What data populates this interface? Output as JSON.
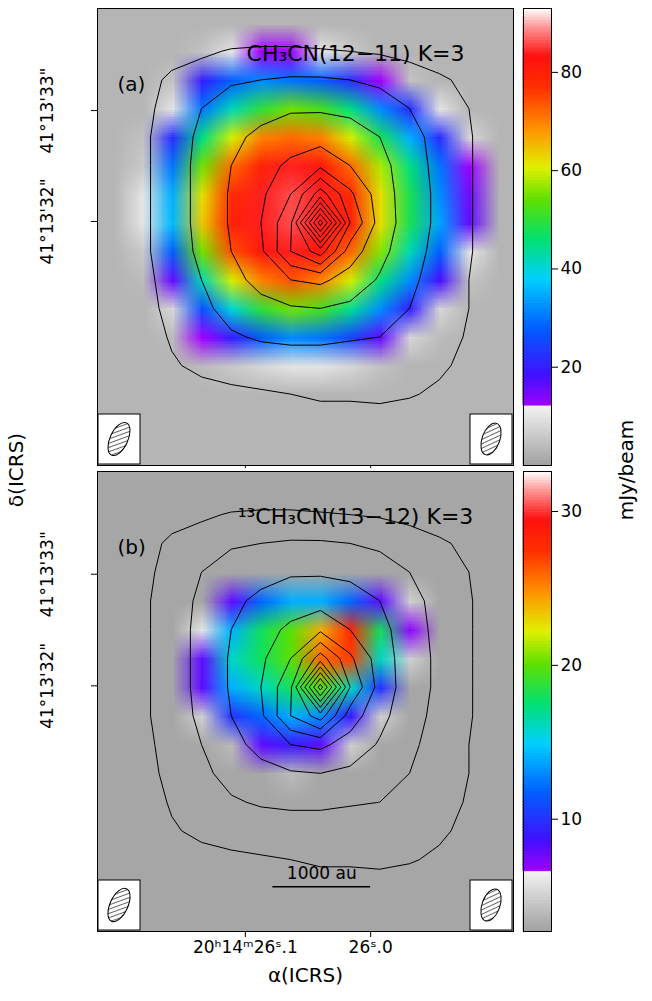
{
  "chart_data": [
    {
      "type": "heatmap",
      "label": "(a)",
      "title": "CH₃CN(12−11) K=3",
      "xlim": [
        26.218,
        25.886
      ],
      "ylim": [
        29.8,
        33.92
      ],
      "xticks": [
        {
          "value": 26.1,
          "label": "20ʰ14ᵐ26ˢ.1"
        },
        {
          "value": 26.0,
          "label": "26ˢ.0"
        }
      ],
      "yticks": [
        {
          "value": 32,
          "label": "41°13'32\""
        },
        {
          "value": 33,
          "label": "41°13'33\""
        }
      ],
      "tick_labels": "y",
      "cells": [
        [
          3,
          3,
          3,
          3,
          3,
          3,
          3,
          3,
          3,
          3,
          3,
          3,
          3,
          3
        ],
        [
          3,
          3,
          3,
          5,
          10,
          12,
          12,
          10,
          6,
          3,
          3,
          3,
          3,
          3
        ],
        [
          3,
          3,
          5,
          20,
          28,
          32,
          30,
          28,
          22,
          12,
          5,
          3,
          3,
          3
        ],
        [
          3,
          3,
          10,
          30,
          42,
          50,
          55,
          52,
          45,
          32,
          22,
          10,
          3,
          3
        ],
        [
          3,
          5,
          22,
          45,
          60,
          70,
          72,
          70,
          60,
          48,
          35,
          22,
          8,
          3
        ],
        [
          3,
          6,
          30,
          55,
          72,
          80,
          84,
          82,
          72,
          58,
          45,
          30,
          12,
          3
        ],
        [
          3,
          10,
          35,
          62,
          78,
          84,
          86,
          84,
          78,
          62,
          48,
          32,
          15,
          3
        ],
        [
          3,
          10,
          36,
          64,
          80,
          84,
          86,
          84,
          80,
          62,
          48,
          34,
          16,
          3
        ],
        [
          3,
          6,
          28,
          55,
          74,
          82,
          84,
          82,
          72,
          56,
          42,
          28,
          10,
          3
        ],
        [
          3,
          4,
          16,
          42,
          60,
          70,
          74,
          70,
          60,
          45,
          32,
          18,
          5,
          3
        ],
        [
          3,
          3,
          8,
          26,
          40,
          50,
          55,
          52,
          44,
          32,
          20,
          8,
          3,
          3
        ],
        [
          3,
          3,
          4,
          12,
          20,
          28,
          32,
          30,
          25,
          16,
          8,
          4,
          3,
          3
        ],
        [
          3,
          3,
          3,
          4,
          6,
          8,
          10,
          10,
          8,
          5,
          3,
          3,
          3,
          3
        ],
        [
          3,
          3,
          3,
          3,
          3,
          3,
          3,
          3,
          3,
          3,
          3,
          3,
          3,
          3
        ],
        [
          3,
          3,
          3,
          3,
          3,
          3,
          3,
          3,
          3,
          3,
          3,
          3,
          3,
          3
        ],
        [
          3,
          3,
          3,
          3,
          3,
          3,
          3,
          3,
          3,
          3,
          3,
          3,
          3,
          3
        ]
      ],
      "colorbar": {
        "range": [
          0,
          93
        ],
        "ticks": [
          20,
          40,
          60,
          80
        ],
        "threshold": 12
      },
      "beams": [
        {
          "major": 0.32,
          "minor": 0.16,
          "pa": -25
        },
        {
          "major": 0.3,
          "minor": 0.16,
          "pa": -20
        }
      ]
    },
    {
      "type": "heatmap",
      "label": "(b)",
      "title": "¹³CH₃CN(13−12) K=3",
      "x_label": "α(ICRS)",
      "xlim": [
        26.218,
        25.886
      ],
      "ylim": [
        29.8,
        33.92
      ],
      "xticks": [
        {
          "value": 26.1,
          "label": "20ʰ14ᵐ26ˢ.1"
        },
        {
          "value": 26.0,
          "label": "26ˢ.0"
        }
      ],
      "yticks": [
        {
          "value": 32,
          "label": "41°13'32\""
        },
        {
          "value": 33,
          "label": "41°13'33\""
        }
      ],
      "cells": [
        [
          3,
          3,
          3,
          3,
          3,
          3,
          3,
          3,
          3,
          3,
          3,
          3,
          3,
          3
        ],
        [
          3,
          3,
          3,
          3,
          3,
          3,
          3,
          3,
          3,
          3,
          3,
          3,
          3,
          3
        ],
        [
          3,
          3,
          3,
          3,
          3,
          3,
          3,
          3,
          3,
          3,
          3,
          3,
          3,
          3
        ],
        [
          3,
          3,
          3,
          3,
          3,
          3,
          3,
          3,
          3,
          3,
          3,
          3,
          3,
          3
        ],
        [
          3,
          3,
          3,
          3,
          8,
          12,
          14,
          14,
          12,
          8,
          5,
          3,
          3,
          3
        ],
        [
          3,
          3,
          3,
          6,
          14,
          18,
          20,
          24,
          28,
          18,
          7,
          3,
          3,
          3
        ],
        [
          3,
          3,
          3,
          8,
          16,
          18,
          20,
          26,
          27,
          16,
          5,
          3,
          3,
          3
        ],
        [
          3,
          3,
          3,
          8,
          14,
          16,
          18,
          20,
          16,
          10,
          3,
          3,
          3,
          3
        ],
        [
          3,
          3,
          3,
          5,
          10,
          12,
          14,
          13,
          9,
          5,
          3,
          3,
          3,
          3
        ],
        [
          3,
          3,
          3,
          3,
          4,
          8,
          9,
          8,
          5,
          3,
          3,
          3,
          3,
          3
        ],
        [
          3,
          3,
          3,
          3,
          3,
          3,
          4,
          3,
          3,
          3,
          3,
          3,
          3,
          3
        ],
        [
          3,
          3,
          3,
          3,
          3,
          3,
          3,
          3,
          3,
          3,
          3,
          3,
          3,
          3
        ],
        [
          3,
          3,
          3,
          3,
          3,
          3,
          3,
          3,
          3,
          3,
          3,
          3,
          3,
          3
        ],
        [
          3,
          3,
          3,
          3,
          3,
          3,
          3,
          3,
          3,
          3,
          3,
          3,
          3,
          3
        ],
        [
          3,
          3,
          3,
          3,
          3,
          3,
          3,
          3,
          3,
          3,
          3,
          3,
          3,
          3
        ],
        [
          3,
          3,
          3,
          3,
          3,
          3,
          3,
          3,
          3,
          3,
          3,
          3,
          3,
          3
        ]
      ],
      "colorbar": {
        "range": [
          2.7,
          32.6
        ],
        "ticks": [
          10,
          20,
          30
        ],
        "threshold": 6.6
      },
      "beams": [
        {
          "major": 0.32,
          "minor": 0.16,
          "pa": -25
        },
        {
          "major": 0.3,
          "minor": 0.16,
          "pa": -20
        }
      ],
      "scale_bar": {
        "label": "1000 au",
        "x": [
          26.078,
          26.0
        ],
        "y": 30.2
      }
    }
  ],
  "y_label": "δ(ICRS)",
  "colorbar_label": "mJy/beam",
  "contours": {
    "levels": [
      1,
      2,
      3,
      4,
      5,
      6,
      7,
      8,
      9,
      10,
      11,
      12
    ],
    "values": [
      [
        0,
        0,
        0,
        0,
        0,
        0,
        0,
        0,
        0,
        0,
        0,
        0,
        0,
        0
      ],
      [
        0,
        0,
        0.6,
        0.8,
        1.1,
        1.2,
        1.2,
        1.1,
        1.0,
        0.9,
        0.7,
        0.3,
        0,
        0
      ],
      [
        0,
        0.6,
        1.2,
        1.6,
        1.9,
        2.0,
        2.1,
        2.1,
        2.0,
        1.8,
        1.5,
        1.2,
        0.7,
        0.2
      ],
      [
        0,
        0.7,
        1.4,
        2.0,
        2.4,
        2.7,
        2.9,
        2.9,
        2.8,
        2.5,
        2.0,
        1.5,
        1.0,
        0.3
      ],
      [
        0,
        0.8,
        1.5,
        2.2,
        2.8,
        3.2,
        3.5,
        3.6,
        3.4,
        3.0,
        2.3,
        1.7,
        1.1,
        0.3
      ],
      [
        0,
        0.8,
        1.5,
        2.3,
        3.0,
        3.6,
        4.2,
        4.8,
        4.0,
        3.3,
        2.5,
        1.7,
        1.1,
        0.3
      ],
      [
        0,
        0.8,
        1.5,
        2.3,
        3.1,
        3.8,
        5.0,
        7.5,
        5.2,
        3.5,
        2.5,
        1.8,
        1.1,
        0.3
      ],
      [
        0,
        0.8,
        1.5,
        2.3,
        3.1,
        4.0,
        5.8,
        12.5,
        6.0,
        3.6,
        2.5,
        1.8,
        1.1,
        0.3
      ],
      [
        0,
        0.8,
        1.5,
        2.2,
        3.0,
        3.8,
        6.0,
        7.5,
        4.5,
        3.3,
        2.4,
        1.7,
        1.1,
        0.3
      ],
      [
        0,
        0.7,
        1.4,
        2.0,
        2.7,
        3.3,
        4.0,
        4.2,
        3.6,
        2.9,
        2.2,
        1.6,
        1.0,
        0.3
      ],
      [
        0,
        0.6,
        1.3,
        1.8,
        2.3,
        2.7,
        2.9,
        3.0,
        2.8,
        2.4,
        2.0,
        1.5,
        1.0,
        0.3
      ],
      [
        0,
        0.5,
        1.1,
        1.5,
        1.9,
        2.1,
        2.2,
        2.2,
        2.1,
        2.0,
        1.8,
        1.4,
        0.9,
        0.2
      ],
      [
        0,
        0.3,
        0.9,
        1.2,
        1.4,
        1.5,
        1.5,
        1.5,
        1.4,
        1.5,
        1.5,
        1.2,
        0.7,
        0.1
      ],
      [
        0,
        0.2,
        0.5,
        0.7,
        0.8,
        0.9,
        1.0,
        1.1,
        1.1,
        1.2,
        1.1,
        0.8,
        0.4,
        0
      ],
      [
        0,
        0.1,
        0.2,
        0.3,
        0.4,
        0.5,
        0.6,
        0.7,
        0.7,
        0.6,
        0.4,
        0.3,
        0.2,
        0
      ],
      [
        0,
        0,
        0,
        0,
        0,
        0,
        0,
        0,
        0,
        0,
        0,
        0,
        0,
        0
      ]
    ]
  }
}
